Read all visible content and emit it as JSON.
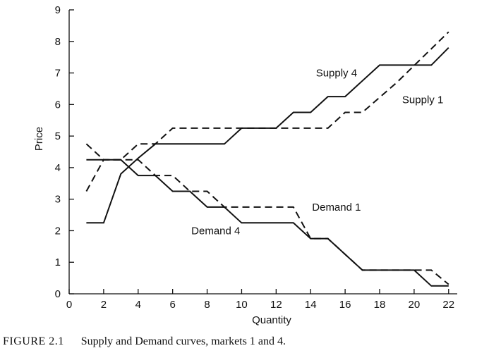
{
  "chart_data": {
    "type": "line",
    "xlabel": "Quantity",
    "ylabel": "Price",
    "xlim": [
      0,
      22.5
    ],
    "ylim": [
      0,
      9
    ],
    "xticks": [
      0,
      2,
      4,
      6,
      8,
      10,
      12,
      14,
      16,
      18,
      20,
      22
    ],
    "yticks": [
      0,
      1,
      2,
      3,
      4,
      5,
      6,
      7,
      8,
      9
    ],
    "grid": false,
    "series": [
      {
        "name": "Supply 4",
        "style": "solid",
        "points": [
          [
            1,
            2.25
          ],
          [
            2,
            2.25
          ],
          [
            3,
            3.8
          ],
          [
            4,
            4.3
          ],
          [
            5,
            4.75
          ],
          [
            9,
            4.75
          ],
          [
            10,
            5.25
          ],
          [
            12,
            5.25
          ],
          [
            13,
            5.75
          ],
          [
            14,
            5.75
          ],
          [
            15,
            6.25
          ],
          [
            16,
            6.25
          ],
          [
            18,
            7.25
          ],
          [
            21,
            7.25
          ],
          [
            22,
            7.8
          ]
        ]
      },
      {
        "name": "Supply 1",
        "style": "dashed",
        "points": [
          [
            1,
            3.25
          ],
          [
            2,
            4.25
          ],
          [
            3,
            4.25
          ],
          [
            4,
            4.75
          ],
          [
            5,
            4.75
          ],
          [
            6,
            5.25
          ],
          [
            14,
            5.25
          ],
          [
            15,
            5.25
          ],
          [
            16,
            5.75
          ],
          [
            17,
            5.75
          ],
          [
            19,
            6.7
          ],
          [
            22,
            8.3
          ]
        ]
      },
      {
        "name": "Demand 4",
        "style": "solid",
        "points": [
          [
            1,
            4.25
          ],
          [
            3,
            4.25
          ],
          [
            4,
            3.75
          ],
          [
            5,
            3.75
          ],
          [
            6,
            3.25
          ],
          [
            7,
            3.25
          ],
          [
            8,
            2.75
          ],
          [
            9,
            2.75
          ],
          [
            10,
            2.25
          ],
          [
            13,
            2.25
          ],
          [
            14,
            1.75
          ],
          [
            15,
            1.75
          ],
          [
            17,
            0.75
          ],
          [
            20,
            0.75
          ],
          [
            21,
            0.25
          ],
          [
            22,
            0.25
          ]
        ]
      },
      {
        "name": "Demand 1",
        "style": "dashed",
        "points": [
          [
            1,
            4.75
          ],
          [
            2,
            4.25
          ],
          [
            4,
            4.25
          ],
          [
            5,
            3.75
          ],
          [
            6,
            3.75
          ],
          [
            7,
            3.25
          ],
          [
            8,
            3.25
          ],
          [
            9,
            2.75
          ],
          [
            13,
            2.75
          ],
          [
            14,
            1.75
          ],
          [
            15,
            1.75
          ],
          [
            17,
            0.75
          ],
          [
            21,
            0.75
          ],
          [
            22,
            0.3
          ]
        ]
      }
    ],
    "labels": [
      {
        "text": "Supply 4",
        "anchor": [
          15.5,
          7.0
        ]
      },
      {
        "text": "Supply 1",
        "anchor": [
          20.5,
          6.15
        ]
      },
      {
        "text": "Demand 1",
        "anchor": [
          15.5,
          2.75
        ]
      },
      {
        "text": "Demand 4",
        "anchor": [
          8.5,
          2.0
        ]
      }
    ]
  },
  "caption": {
    "figure": "FIGURE 2.1",
    "text": "Supply and Demand curves, markets 1 and 4."
  }
}
